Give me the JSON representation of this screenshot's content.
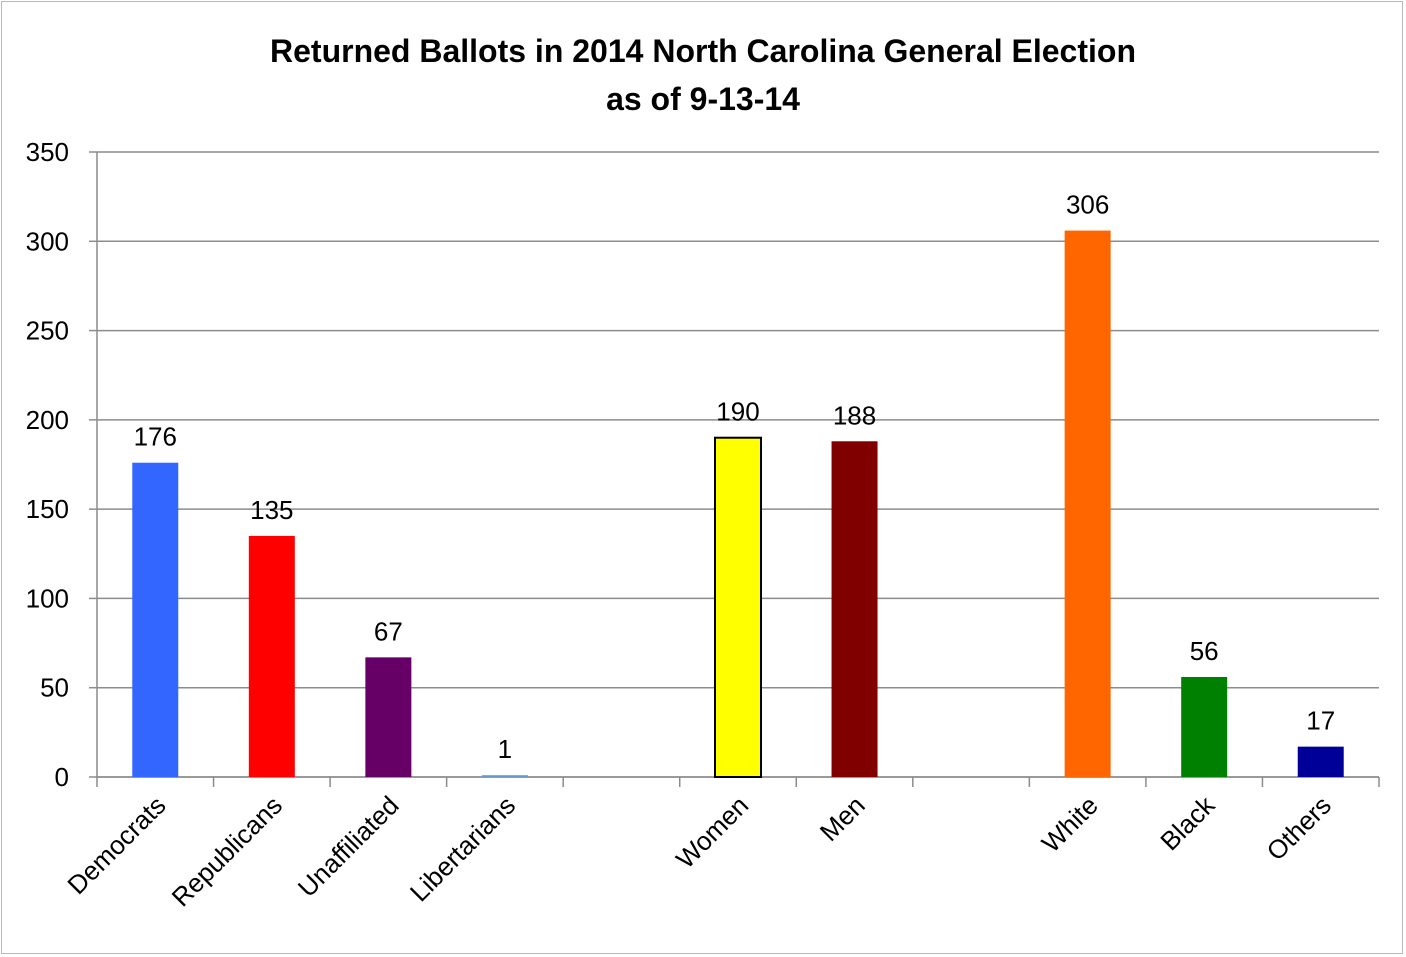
{
  "chart_data": {
    "type": "bar",
    "title": "Returned Ballots in 2014 North Carolina General Election",
    "subtitle": "as of 9-13-14",
    "xlabel": "",
    "ylabel": "",
    "ylim": [
      0,
      350
    ],
    "yticks": [
      0,
      50,
      100,
      150,
      200,
      250,
      300,
      350
    ],
    "yticks_text": [
      "0",
      "50",
      "100",
      "150",
      "200",
      "250",
      "300",
      "350"
    ],
    "grid": true,
    "legend": "none",
    "categories": [
      "Democrats",
      "Republicans",
      "Unaffiliated",
      "Libertarians",
      "",
      "Women",
      "Men",
      "",
      "White",
      "Black",
      "Others"
    ],
    "values": [
      176,
      135,
      67,
      1,
      null,
      190,
      188,
      null,
      306,
      56,
      17
    ],
    "data_labels": [
      "176",
      "135",
      "67",
      "1",
      "",
      "190",
      "188",
      "",
      "306",
      "56",
      "17"
    ],
    "colors": [
      "#3366ff",
      "#ff0000",
      "#660066",
      "#6699cc",
      "",
      "#ffff00",
      "#800000",
      "",
      "#ff6600",
      "#008000",
      "#000099"
    ],
    "outlined": [
      false,
      false,
      false,
      false,
      false,
      true,
      false,
      false,
      false,
      false,
      false
    ]
  }
}
